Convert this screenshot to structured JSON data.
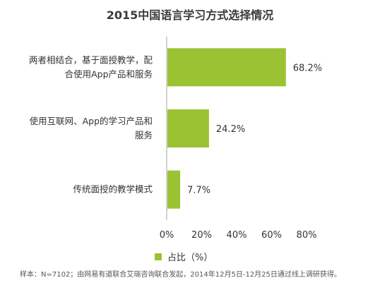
{
  "title": "2015中国语言学习方式选择情况",
  "chart_data": {
    "type": "bar",
    "orientation": "horizontal",
    "categories": [
      [
        "两者相结合，基于面授教学，配",
        "合使用App产品和服务"
      ],
      [
        "使用互联网、App的学习产品和",
        "服务"
      ],
      [
        "传统面授的教学模式"
      ]
    ],
    "series": [
      {
        "name": "占比（%）",
        "values": [
          68.2,
          24.2,
          7.7
        ],
        "color": "#9bc232"
      }
    ],
    "value_labels": [
      "68.2%",
      "24.2%",
      "7.7%"
    ],
    "xlim": [
      0,
      80
    ],
    "xticks": [
      "0%",
      "20%",
      "40%",
      "60%",
      "80%"
    ],
    "grid": false,
    "legend_position": "bottom"
  },
  "footnote": "样本：N=7102；由网易有道联合艾瑞咨询联合发起，2014年12月5日-12月25日通过线上调研获得。"
}
